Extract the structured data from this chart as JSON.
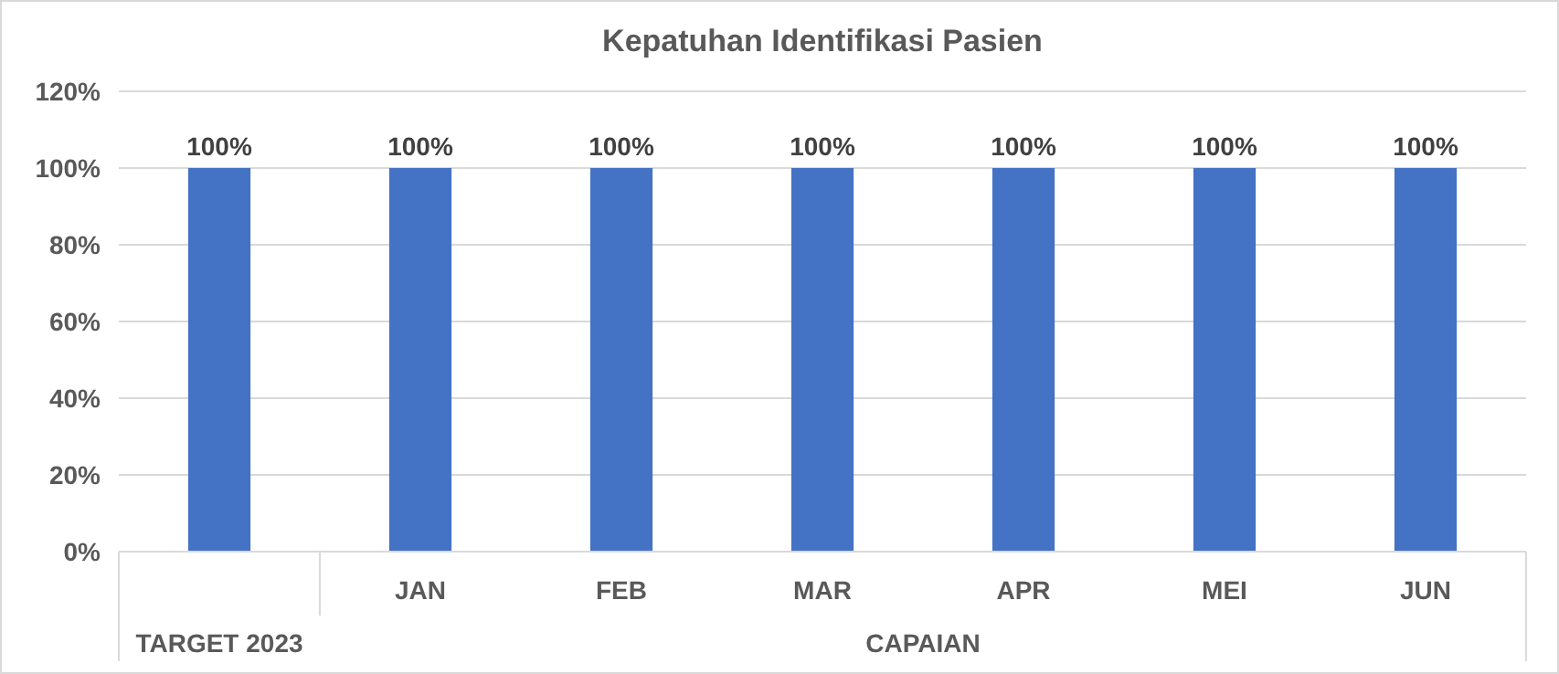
{
  "chart_data": {
    "type": "bar",
    "title": "Kepatuhan Identifikasi Pasien",
    "categories": [
      null,
      "JAN",
      "FEB",
      "MAR",
      "APR",
      "MEI",
      "JUN"
    ],
    "values": [
      100,
      100,
      100,
      100,
      100,
      100,
      100
    ],
    "value_labels": [
      "100%",
      "100%",
      "100%",
      "100%",
      "100%",
      "100%",
      "100%"
    ],
    "color": "#4472c4",
    "ylim": [
      0,
      120
    ],
    "yticks": [
      {
        "value": 0,
        "label": "0%"
      },
      {
        "value": 20,
        "label": "20%"
      },
      {
        "value": 40,
        "label": "40%"
      },
      {
        "value": 60,
        "label": "60%"
      },
      {
        "value": 80,
        "label": "80%"
      },
      {
        "value": 100,
        "label": "100%"
      },
      {
        "value": 120,
        "label": "120%"
      }
    ],
    "grid": "y",
    "annotations": [
      "TARGET 2023",
      "CAPAIAN"
    ]
  }
}
